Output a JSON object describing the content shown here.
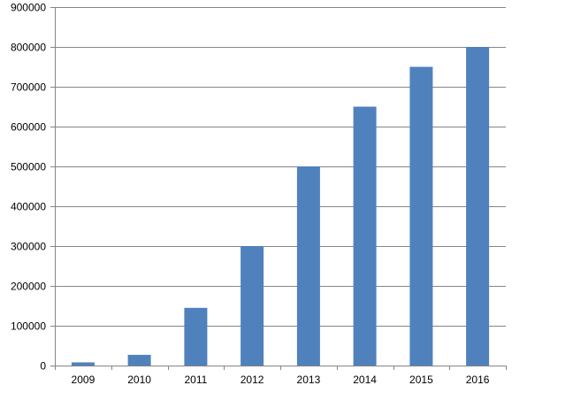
{
  "chart_data": {
    "type": "bar",
    "categories": [
      "2009",
      "2010",
      "2011",
      "2012",
      "2013",
      "2014",
      "2015",
      "2016"
    ],
    "values": [
      8000,
      27000,
      145000,
      300000,
      500000,
      650000,
      750000,
      800000
    ],
    "yticks": [
      "0",
      "100000",
      "200000",
      "300000",
      "400000",
      "500000",
      "600000",
      "700000",
      "800000",
      "900000"
    ],
    "ylim": [
      0,
      900000
    ],
    "grid": true,
    "legend": "none",
    "title": "",
    "xlabel": "",
    "ylabel": "",
    "colors": {
      "bar": "#4f81bd",
      "grid": "#868686",
      "axis": "#868686",
      "text": "#000000"
    }
  }
}
